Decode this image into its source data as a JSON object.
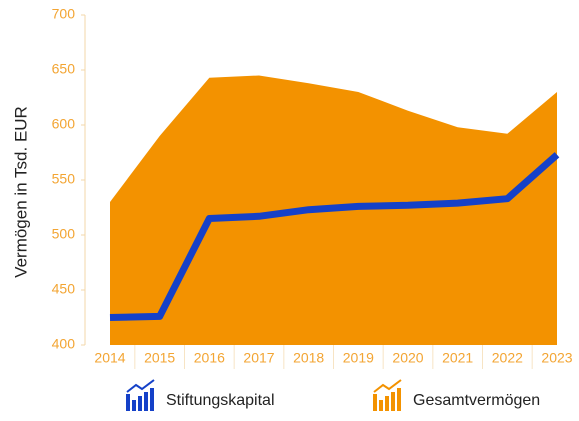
{
  "chart_data": {
    "type": "area-line",
    "ylabel": "Vermögen in Tsd. EUR",
    "categories": [
      "2014",
      "2015",
      "2016",
      "2017",
      "2018",
      "2019",
      "2020",
      "2021",
      "2022",
      "2023"
    ],
    "series": [
      {
        "name": "Stiftungskapital",
        "color": "#1541c8",
        "kind": "line",
        "values": [
          425,
          426,
          515,
          517,
          523,
          526,
          527,
          529,
          533,
          573
        ]
      },
      {
        "name": "Gesamtvermögen",
        "color": "#f39200",
        "kind": "area",
        "values": [
          530,
          590,
          643,
          645,
          638,
          630,
          613,
          598,
          592,
          630
        ]
      }
    ],
    "ylim": [
      400,
      700
    ],
    "yticks": [
      400,
      450,
      500,
      550,
      600,
      650,
      700
    ]
  }
}
